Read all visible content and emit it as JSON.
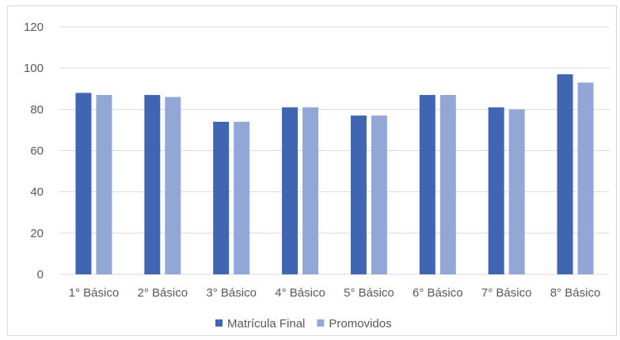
{
  "chart_data": {
    "type": "bar",
    "categories": [
      "1° Básico",
      "2° Básico",
      "3° Básico",
      "4° Básico",
      "5° Básico",
      "6° Básico",
      "7° Básico",
      "8° Básico"
    ],
    "series": [
      {
        "name": "Matrícula Final",
        "values": [
          88,
          87,
          74,
          81,
          77,
          87,
          81,
          97
        ],
        "color": "#4065B1"
      },
      {
        "name": "Promovidos",
        "values": [
          87,
          86,
          74,
          81,
          77,
          87,
          80,
          93
        ],
        "color": "#92A7D6"
      }
    ],
    "yticks": [
      0,
      20,
      40,
      60,
      80,
      100,
      120
    ],
    "ylim": [
      0,
      120
    ],
    "grid": true,
    "legend": "bottom",
    "gridColor": "#d9d9d9"
  }
}
